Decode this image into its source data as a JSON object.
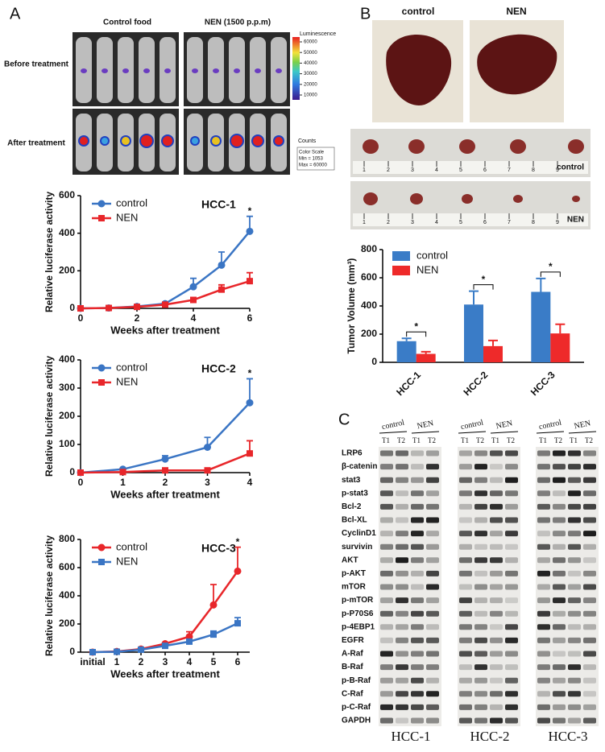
{
  "panel_labels": [
    "A",
    "B",
    "C"
  ],
  "imaging": {
    "columns": [
      "Control food",
      "NEN (1500 p.p.m)"
    ],
    "rows": [
      "Before treatment",
      "After treatment"
    ],
    "scale_title": "Luminescence",
    "scale_ticks": [
      60000,
      50000,
      40000,
      30000,
      20000,
      10000
    ],
    "scale_unit": "Counts",
    "scale_note": [
      "Color Scale",
      "Min = 1053",
      "Max = 60000"
    ]
  },
  "tissue": {
    "columns": [
      "control",
      "NEN"
    ],
    "strips": [
      "control",
      "NEN"
    ],
    "ruler": [
      1,
      2,
      3,
      4,
      5,
      6,
      7,
      8,
      9
    ]
  },
  "blot": {
    "conditions": [
      "control",
      "NEN"
    ],
    "lanes": [
      "T1",
      "T2",
      "T1",
      "T2"
    ],
    "proteins": [
      "LRP6",
      "β-catenin",
      "stat3",
      "p-stat3",
      "Bcl-2",
      "Bcl-XL",
      "CyclinD1",
      "survivin",
      "AKT",
      "p-AKT",
      "mTOR",
      "p-mTOR",
      "p-P70S6",
      "p-4EBP1",
      "EGFR",
      "A-Raf",
      "B-Raf",
      "p-B-Raf",
      "C-Raf",
      "p-C-Raf",
      "GAPDH"
    ],
    "cell_lines": [
      "HCC-1",
      "HCC-2",
      "HCC-3"
    ]
  },
  "chart_data": [
    {
      "type": "line",
      "title": "HCC-1",
      "x_label": "Weeks after treatment",
      "y_label": "Relative luciferase activity",
      "x": [
        0,
        1,
        2,
        3,
        4,
        5,
        6
      ],
      "xlim": [
        0,
        6
      ],
      "xticks": [
        0,
        2,
        4,
        6
      ],
      "ylim": [
        0,
        600
      ],
      "yticks": [
        0,
        200,
        400,
        600
      ],
      "series": [
        {
          "name": "control",
          "color": "#3a75c4",
          "marker": "circle",
          "values": [
            0,
            2,
            10,
            25,
            115,
            230,
            410
          ],
          "errors": [
            0,
            0,
            0,
            0,
            45,
            70,
            80
          ]
        },
        {
          "name": "NEN",
          "color": "#e8262a",
          "marker": "square",
          "values": [
            0,
            2,
            8,
            20,
            45,
            100,
            145
          ],
          "errors": [
            0,
            0,
            0,
            0,
            0,
            25,
            45
          ]
        }
      ],
      "annotations": [
        {
          "text": "*",
          "x": 6
        }
      ]
    },
    {
      "type": "line",
      "title": "HCC-2",
      "x_label": "Weeks after treatment",
      "y_label": "Relative luciferase activity",
      "x": [
        0,
        1,
        2,
        3,
        4
      ],
      "xlim": [
        0,
        4
      ],
      "xticks": [
        0,
        1,
        2,
        3,
        4
      ],
      "ylim": [
        0,
        400
      ],
      "yticks": [
        0,
        100,
        200,
        300,
        400
      ],
      "series": [
        {
          "name": "control",
          "color": "#3a75c4",
          "marker": "circle",
          "values": [
            0,
            12,
            48,
            90,
            248
          ],
          "errors": [
            0,
            0,
            12,
            35,
            85
          ]
        },
        {
          "name": "NEN",
          "color": "#e8262a",
          "marker": "square",
          "values": [
            0,
            2,
            8,
            8,
            68
          ],
          "errors": [
            0,
            0,
            0,
            0,
            45
          ]
        }
      ],
      "annotations": [
        {
          "text": "*",
          "x": 4
        }
      ]
    },
    {
      "type": "line",
      "title": "HCC-3",
      "x_label": "Weeks after treatment",
      "y_label": "Relative luciferase activity",
      "categories": [
        "initial",
        "1",
        "2",
        "3",
        "4",
        "5",
        "6"
      ],
      "ylim": [
        0,
        800
      ],
      "yticks": [
        0,
        200,
        400,
        600,
        800
      ],
      "series": [
        {
          "name": "control",
          "color": "#e8262a",
          "marker": "circle",
          "values": [
            0,
            5,
            22,
            60,
            110,
            335,
            575
          ],
          "errors": [
            0,
            0,
            0,
            0,
            35,
            145,
            170
          ]
        },
        {
          "name": "NEN",
          "color": "#3a75c4",
          "marker": "square",
          "values": [
            0,
            3,
            18,
            45,
            75,
            125,
            205
          ],
          "errors": [
            0,
            0,
            0,
            0,
            10,
            25,
            40
          ]
        }
      ],
      "annotations": [
        {
          "text": "*",
          "x": "6"
        }
      ]
    },
    {
      "type": "bar",
      "y_label": "Tumor Volume (mm³)",
      "categories": [
        "HCC-1",
        "HCC-2",
        "HCC-3"
      ],
      "ylim": [
        0,
        800
      ],
      "yticks": [
        0,
        200,
        400,
        600,
        800
      ],
      "series": [
        {
          "name": "control",
          "color": "#3a7cc7",
          "values": [
            150,
            410,
            500
          ],
          "errors": [
            20,
            95,
            95
          ]
        },
        {
          "name": "NEN",
          "color": "#ee2a2a",
          "values": [
            60,
            115,
            205
          ],
          "errors": [
            15,
            40,
            65
          ]
        }
      ],
      "annotations": [
        {
          "text": "*",
          "x": "HCC-1"
        },
        {
          "text": "*",
          "x": "HCC-2"
        },
        {
          "text": "*",
          "x": "HCC-3"
        }
      ]
    }
  ]
}
